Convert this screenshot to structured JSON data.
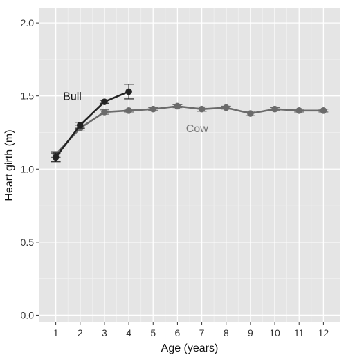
{
  "chart_data": {
    "type": "line",
    "title": "",
    "xlabel": "Age (years)",
    "ylabel": "Heart girth (m)",
    "x_ticks": [
      1,
      2,
      3,
      4,
      5,
      6,
      7,
      8,
      9,
      10,
      11,
      12
    ],
    "y_ticks": [
      0.0,
      0.5,
      1.0,
      1.5,
      2.0
    ],
    "y_tick_labels": [
      "0.0",
      "0.5",
      "1.0",
      "1.5",
      "2.0"
    ],
    "xlim": [
      0.3,
      12.7
    ],
    "ylim": [
      -0.05,
      2.1
    ],
    "grid": true,
    "legend": "none (series labelled directly on the plot)",
    "background_color": "#e5e5e5",
    "series": [
      {
        "name": "Bull",
        "color": "#222222",
        "label_color": "#111111",
        "x": [
          1,
          2,
          3,
          4
        ],
        "y": [
          1.08,
          1.3,
          1.46,
          1.53
        ],
        "error": [
          0.03,
          0.02,
          0.01,
          0.05
        ]
      },
      {
        "name": "Cow",
        "color": "#6b6b6b",
        "label_color": "#777777",
        "x": [
          1,
          2,
          3,
          4,
          5,
          6,
          7,
          8,
          9,
          10,
          11,
          12
        ],
        "y": [
          1.1,
          1.28,
          1.39,
          1.4,
          1.41,
          1.43,
          1.41,
          1.42,
          1.38,
          1.41,
          1.4,
          1.4
        ],
        "error": [
          0.02,
          0.02,
          0.015,
          0.01,
          0.01,
          0.01,
          0.015,
          0.01,
          0.015,
          0.01,
          0.01,
          0.01
        ]
      }
    ]
  }
}
